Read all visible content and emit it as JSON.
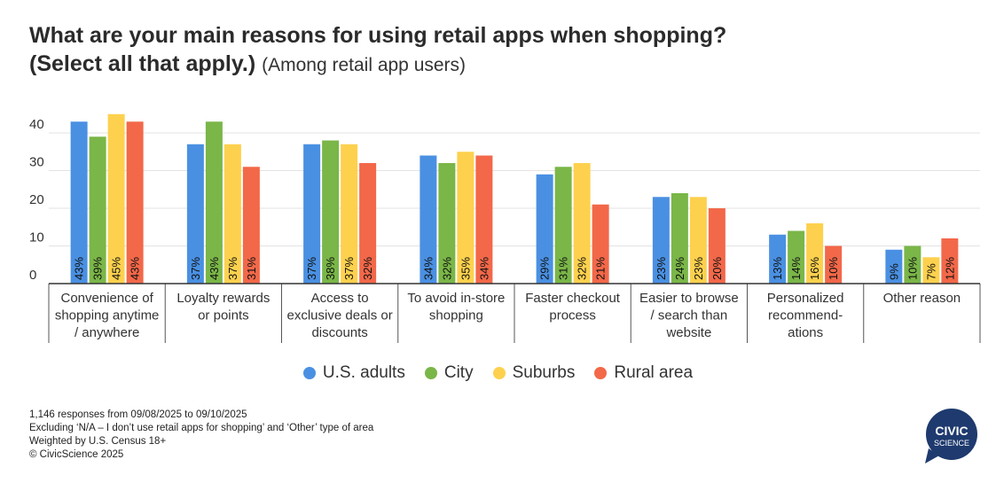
{
  "title": {
    "main": "What are your main reasons for using retail apps when shopping?",
    "bold2": "(Select all that apply.)",
    "sub": "(Among retail app users)"
  },
  "chart_data": {
    "type": "bar",
    "categories": [
      [
        "Convenience of",
        "shopping anytime",
        "/ anywhere"
      ],
      [
        "Loyalty rewards",
        "or points"
      ],
      [
        "Access to",
        "exclusive deals or",
        "discounts"
      ],
      [
        "To avoid in-store",
        "shopping"
      ],
      [
        "Faster checkout",
        "process"
      ],
      [
        "Easier to browse",
        "/ search than",
        "website"
      ],
      [
        "Personalized",
        "recommend-",
        "ations"
      ],
      [
        "Other reason"
      ]
    ],
    "series": [
      {
        "name": "U.S. adults",
        "color": "#4a90e2",
        "values": [
          43,
          37,
          37,
          34,
          29,
          23,
          13,
          9
        ]
      },
      {
        "name": "City",
        "color": "#7ab648",
        "values": [
          39,
          43,
          38,
          32,
          31,
          24,
          14,
          10
        ]
      },
      {
        "name": "Suburbs",
        "color": "#fdd14e",
        "values": [
          45,
          37,
          37,
          35,
          32,
          23,
          16,
          7
        ]
      },
      {
        "name": "Rural area",
        "color": "#f26849",
        "values": [
          43,
          31,
          32,
          34,
          21,
          20,
          10,
          12
        ]
      }
    ],
    "value_suffix": "%",
    "yticks": [
      0,
      10,
      20,
      30,
      40
    ],
    "ylim": [
      0,
      45
    ],
    "grid": true,
    "legend": "bottom-center"
  },
  "footnotes": [
    "1,146 responses from 09/08/2025 to 09/10/2025",
    "Excluding ‘N/A – I don’t use retail apps for shopping’ and ‘Other’ type of area",
    "Weighted by U.S. Census 18+",
    "© CivicScience 2025"
  ],
  "logo": {
    "line1": "CIVIC",
    "line2": "SCIENCE",
    "color": "#1e3a6e"
  }
}
